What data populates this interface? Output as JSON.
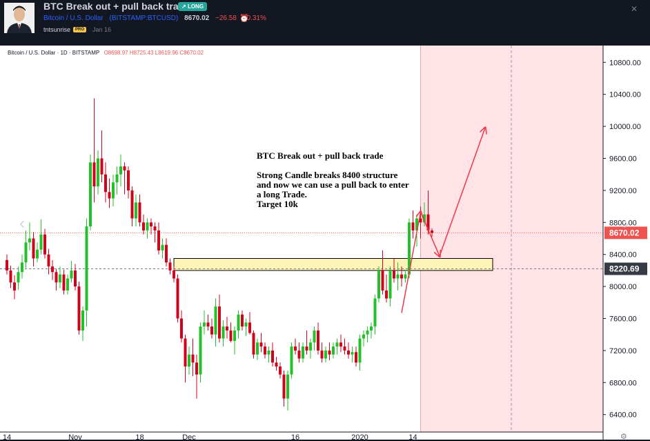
{
  "header": {
    "title": "BTC Break out + pull back trade",
    "badge": "LONG",
    "symbol_name": "Bitcoin / U.S. Dollar",
    "symbol_code": "(BITSTAMP:BTCUSD)",
    "price": "8670.02",
    "change": "−26.58",
    "change_pct": "−0.31%",
    "author": "tntsunrise",
    "author_badge": "PRO",
    "date": "Jan 16"
  },
  "legend": {
    "symbol": "Bitcoin / U.S. Dollar · 1D · BITSTAMP",
    "ohlc": "O8698.97 H8725.43 L8619.96 C8670.02"
  },
  "annotation": {
    "title": "BTC Break out + pull back trade",
    "line1": "Strong Candle breaks 8400 structure",
    "line2": "and now we can use a pull back to enter",
    "line3": "a long Trade.",
    "line4": "Target 10k"
  },
  "colors": {
    "up": "#26a69a",
    "down": "#ef5350",
    "candle_up": "#22c02a",
    "candle_down": "#d0021b",
    "zone_fill": "#fff4b8",
    "zone_border": "#000000",
    "arrow": "#f23645",
    "future_fill": "#ffe3e6"
  },
  "chart_data": {
    "type": "candlestick",
    "title": "Bitcoin / U.S. Dollar · 1D · BITSTAMP",
    "ylim": [
      6000,
      10900
    ],
    "y_ticks": [
      6400,
      6800,
      7200,
      7600,
      8000,
      8400,
      8800,
      9200,
      9600,
      10000,
      10400,
      10800
    ],
    "y_tick_labels": [
      "6400.00",
      "6800.00",
      "7200.00",
      "7600.00",
      "8000.00",
      "8400.00",
      "8800.00",
      "9200.00",
      "9600.00",
      "10000.00",
      "10400.00",
      "10800.00"
    ],
    "x_labels": [
      {
        "text": "14",
        "day": 0
      },
      {
        "text": "Nov",
        "day": 18
      },
      {
        "text": "18",
        "day": 35
      },
      {
        "text": "Dec",
        "day": 48
      },
      {
        "text": "16",
        "day": 76
      },
      {
        "text": "2020",
        "day": 93
      },
      {
        "text": "14",
        "day": 107
      }
    ],
    "last_price": {
      "value": 8670.02,
      "label": "8670.02"
    },
    "marker_price": {
      "value": 8220.69,
      "label": "8220.69"
    },
    "zone": {
      "low": 8200,
      "high": 8350,
      "from_day": 44,
      "to_day": 128
    },
    "future_from_day": 109,
    "arrows": [
      {
        "from": [
          104,
          7670
        ],
        "to": [
          109,
          8930
        ]
      },
      {
        "from": [
          109,
          8930
        ],
        "to": [
          114,
          8380
        ]
      },
      {
        "from": [
          114,
          8380
        ],
        "to": [
          126,
          9980
        ]
      }
    ],
    "candles": [
      [
        0,
        8330,
        8400,
        8150,
        8200
      ],
      [
        1,
        8200,
        8260,
        7980,
        8050
      ],
      [
        2,
        8050,
        8140,
        7840,
        7950
      ],
      [
        3,
        8050,
        8250,
        7960,
        8180
      ],
      [
        4,
        8180,
        8400,
        8100,
        8300
      ],
      [
        5,
        8300,
        8700,
        8230,
        8550
      ],
      [
        6,
        8550,
        8800,
        8450,
        8600
      ],
      [
        7,
        8600,
        8680,
        8250,
        8350
      ],
      [
        8,
        8350,
        8550,
        8300,
        8460
      ],
      [
        9,
        8460,
        8840,
        8400,
        8650
      ],
      [
        10,
        8650,
        8720,
        8350,
        8400
      ],
      [
        11,
        8400,
        8470,
        8150,
        8250
      ],
      [
        12,
        8250,
        8330,
        8080,
        8180
      ],
      [
        13,
        8180,
        8220,
        7950,
        8050
      ],
      [
        14,
        8050,
        8250,
        7980,
        8150
      ],
      [
        15,
        8150,
        8210,
        7900,
        7950
      ],
      [
        16,
        7950,
        8150,
        7900,
        8100
      ],
      [
        17,
        8100,
        8320,
        8050,
        8200
      ],
      [
        18,
        8200,
        8280,
        7950,
        8000
      ],
      [
        19,
        8000,
        8060,
        7400,
        7450
      ],
      [
        20,
        7450,
        7750,
        7320,
        7700
      ],
      [
        21,
        7700,
        8850,
        7500,
        8750
      ],
      [
        22,
        8750,
        9650,
        8700,
        9550
      ],
      [
        23,
        9550,
        10350,
        9050,
        9250
      ],
      [
        24,
        9250,
        9700,
        9150,
        9600
      ],
      [
        25,
        9600,
        9950,
        9300,
        9400
      ],
      [
        26,
        9400,
        9550,
        9050,
        9180
      ],
      [
        27,
        9180,
        9350,
        8980,
        9100
      ],
      [
        28,
        9100,
        9400,
        9000,
        9300
      ],
      [
        29,
        9300,
        9500,
        9150,
        9400
      ],
      [
        30,
        9400,
        9650,
        9250,
        9500
      ],
      [
        31,
        9500,
        9550,
        9150,
        9450
      ],
      [
        32,
        9450,
        9500,
        9100,
        9200
      ],
      [
        33,
        9200,
        9250,
        8750,
        8850
      ],
      [
        34,
        8850,
        9150,
        8750,
        9050
      ],
      [
        35,
        9050,
        9150,
        8750,
        8800
      ],
      [
        36,
        8800,
        8900,
        8650,
        8700
      ],
      [
        37,
        8700,
        8850,
        8600,
        8800
      ],
      [
        38,
        8800,
        8850,
        8650,
        8750
      ],
      [
        39,
        8750,
        8800,
        8550,
        8700
      ],
      [
        40,
        8700,
        8800,
        8400,
        8450
      ],
      [
        41,
        8450,
        8600,
        8350,
        8520
      ],
      [
        42,
        8520,
        8600,
        8250,
        8300
      ],
      [
        43,
        8300,
        8350,
        8150,
        8200
      ],
      [
        44,
        8200,
        8250,
        8050,
        8100
      ],
      [
        45,
        8100,
        8150,
        7550,
        7600
      ],
      [
        46,
        7600,
        7700,
        7300,
        7350
      ],
      [
        47,
        7350,
        7400,
        6800,
        7000
      ],
      [
        48,
        7000,
        7250,
        6900,
        7150
      ],
      [
        49,
        7150,
        7350,
        6880,
        7050
      ],
      [
        50,
        7050,
        7150,
        6600,
        6900
      ],
      [
        51,
        6900,
        7550,
        6800,
        7500
      ],
      [
        52,
        7500,
        7700,
        7400,
        7550
      ],
      [
        53,
        7550,
        7650,
        7450,
        7500
      ],
      [
        54,
        7500,
        7600,
        7350,
        7400
      ],
      [
        55,
        7400,
        7850,
        7250,
        7750
      ],
      [
        56,
        7750,
        7900,
        7300,
        7350
      ],
      [
        57,
        7350,
        7580,
        7250,
        7500
      ],
      [
        58,
        7500,
        7620,
        7350,
        7450
      ],
      [
        59,
        7450,
        7550,
        7300,
        7320
      ],
      [
        60,
        7320,
        7500,
        7150,
        7450
      ],
      [
        61,
        7450,
        7700,
        7350,
        7650
      ],
      [
        62,
        7650,
        7700,
        7450,
        7500
      ],
      [
        63,
        7500,
        7600,
        7380,
        7550
      ],
      [
        64,
        7550,
        7680,
        7400,
        7420
      ],
      [
        65,
        7420,
        7450,
        7100,
        7150
      ],
      [
        66,
        7150,
        7350,
        7080,
        7300
      ],
      [
        67,
        7300,
        7420,
        7180,
        7250
      ],
      [
        68,
        7250,
        7300,
        7100,
        7150
      ],
      [
        69,
        7150,
        7250,
        7050,
        7200
      ],
      [
        70,
        7200,
        7300,
        7000,
        7050
      ],
      [
        71,
        7050,
        7120,
        6950,
        7000
      ],
      [
        72,
        7000,
        7050,
        6850,
        6900
      ],
      [
        73,
        6900,
        6950,
        6500,
        6600
      ],
      [
        74,
        6600,
        6950,
        6450,
        6900
      ],
      [
        75,
        6900,
        7300,
        6850,
        7250
      ],
      [
        76,
        7250,
        7350,
        7150,
        7200
      ],
      [
        77,
        7200,
        7300,
        7050,
        7100
      ],
      [
        78,
        7100,
        7300,
        7050,
        7250
      ],
      [
        79,
        7250,
        7450,
        7150,
        7200
      ],
      [
        80,
        7200,
        7350,
        7100,
        7300
      ],
      [
        81,
        7300,
        7500,
        7200,
        7450
      ],
      [
        82,
        7450,
        7550,
        7150,
        7200
      ],
      [
        83,
        7200,
        7300,
        7050,
        7100
      ],
      [
        84,
        7100,
        7250,
        7050,
        7200
      ],
      [
        85,
        7200,
        7300,
        7080,
        7150
      ],
      [
        86,
        7150,
        7300,
        7100,
        7250
      ],
      [
        87,
        7250,
        7350,
        7150,
        7300
      ],
      [
        88,
        7300,
        7400,
        7180,
        7250
      ],
      [
        89,
        7250,
        7350,
        7150,
        7200
      ],
      [
        90,
        7200,
        7300,
        7100,
        7150
      ],
      [
        91,
        7150,
        7250,
        7050,
        7180
      ],
      [
        92,
        7180,
        7250,
        7000,
        7050
      ],
      [
        93,
        7050,
        7400,
        6950,
        7350
      ],
      [
        94,
        7350,
        7450,
        7250,
        7400
      ],
      [
        95,
        7400,
        7500,
        7300,
        7450
      ],
      [
        96,
        7450,
        7550,
        7350,
        7500
      ],
      [
        97,
        7500,
        7900,
        7400,
        7850
      ],
      [
        98,
        7850,
        8250,
        7800,
        8200
      ],
      [
        99,
        8200,
        8450,
        7900,
        7950
      ],
      [
        100,
        7950,
        8150,
        7800,
        7850
      ],
      [
        101,
        7850,
        8250,
        7750,
        8200
      ],
      [
        102,
        8200,
        8350,
        8050,
        8100
      ],
      [
        103,
        8100,
        8300,
        7950,
        8150
      ],
      [
        104,
        8150,
        8250,
        8000,
        8100
      ],
      [
        105,
        8100,
        8200,
        8050,
        8150
      ],
      [
        106,
        8150,
        8850,
        8100,
        8800
      ],
      [
        107,
        8800,
        8950,
        8600,
        8700
      ],
      [
        108,
        8700,
        8900,
        8500,
        8850
      ],
      [
        109,
        8850,
        9000,
        8600,
        8800
      ],
      [
        110,
        8800,
        9050,
        8750,
        8900
      ],
      [
        111,
        8900,
        9200,
        8650,
        8700
      ],
      [
        112,
        8698.97,
        8725.43,
        8619.96,
        8670.02
      ]
    ]
  }
}
